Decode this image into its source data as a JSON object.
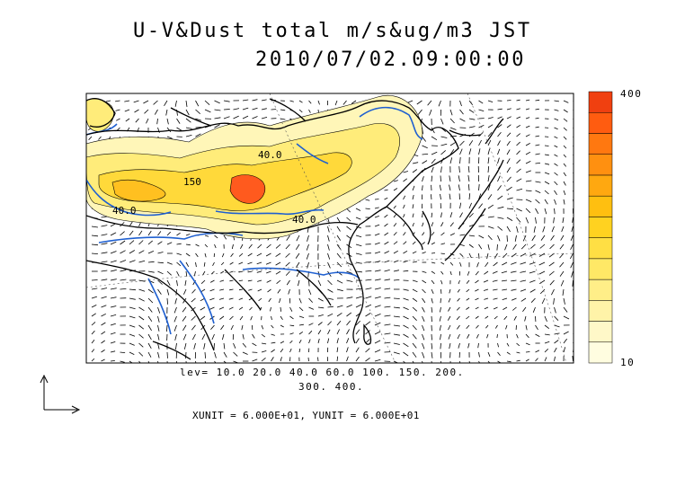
{
  "title": {
    "line1": "U-V&Dust total m/s&ug/m3 JST",
    "line2": "2010/07/02.09:00:00"
  },
  "levels": {
    "line1": "lev= 10.0 20.0 40.0 60.0 100. 150. 200.",
    "line2": "300. 400."
  },
  "units": "XUNIT = 6.000E+01, YUNIT = 6.000E+01",
  "colorbar": {
    "max_label": "400",
    "min_label": "10",
    "colors": [
      "#fffde0",
      "#fff8c8",
      "#fff3a8",
      "#ffee88",
      "#ffe866",
      "#ffdf44",
      "#ffd220",
      "#ffbf10",
      "#ffa810",
      "#ff9010",
      "#ff7810",
      "#ff5c10",
      "#f04010"
    ]
  },
  "contour_labels": [
    "40.0",
    "150",
    "40.0",
    "40.0"
  ],
  "colors": {
    "coast": "#000000",
    "rivers": "#1e5fd0",
    "dust_low": "#fff6b0",
    "dust_mid": "#ffe24a",
    "dust_high": "#ff5a1e"
  }
}
